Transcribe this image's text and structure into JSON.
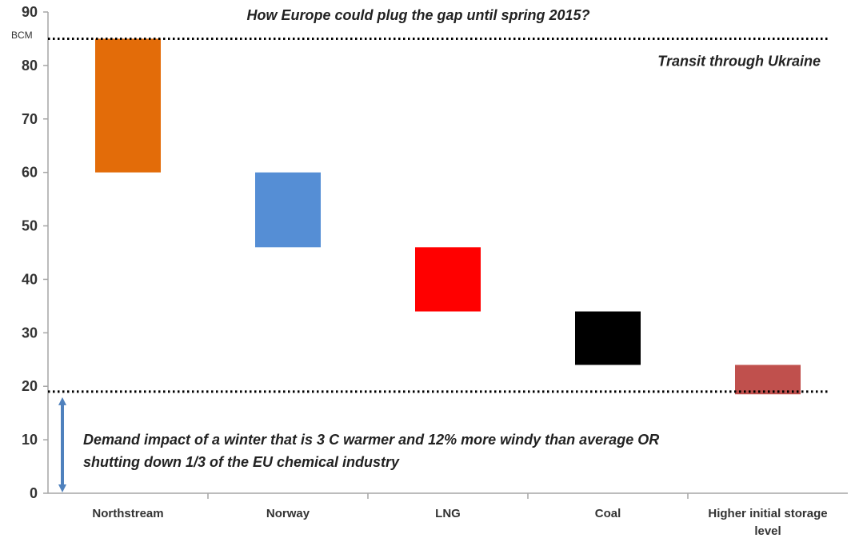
{
  "chart_data": {
    "type": "bar",
    "subtype": "floating-waterfall",
    "title": "How Europe could  plug the gap until spring 2015?",
    "unit_label": "BCM",
    "ylim": [
      0,
      90
    ],
    "yticks": [
      0,
      10,
      20,
      30,
      40,
      50,
      60,
      70,
      80,
      90
    ],
    "grid": false,
    "categories": [
      "Northstream",
      "Norway",
      "LNG",
      "Coal",
      "Higher initial storage level"
    ],
    "category_lines": [
      [
        "Northstream"
      ],
      [
        "Norway"
      ],
      [
        "LNG"
      ],
      [
        "Coal"
      ],
      [
        "Higher initial storage",
        "level"
      ]
    ],
    "bars": [
      {
        "category": "Northstream",
        "low": 60,
        "high": 85,
        "color": "#E36C09"
      },
      {
        "category": "Norway",
        "low": 46,
        "high": 60,
        "color": "#558ED5"
      },
      {
        "category": "LNG",
        "low": 34,
        "high": 46,
        "color": "#FF0000"
      },
      {
        "category": "Coal",
        "low": 24,
        "high": 34,
        "color": "#000000"
      },
      {
        "category": "Higher initial storage level",
        "low": 18.5,
        "high": 24,
        "color": "#C0504D"
      }
    ],
    "reference_lines": [
      {
        "value": 85,
        "label": "Transit through Ukraine",
        "style": "dotted"
      },
      {
        "value": 19,
        "label": "",
        "style": "dotted"
      }
    ],
    "range_annotation": {
      "low": 0,
      "high": 19,
      "color": "#4F81BD",
      "lines": [
        "Demand impact of a  winter that is  3 C warmer and 12% more windy than average OR",
        "shutting down 1/3 of the EU chemical industry"
      ]
    }
  }
}
